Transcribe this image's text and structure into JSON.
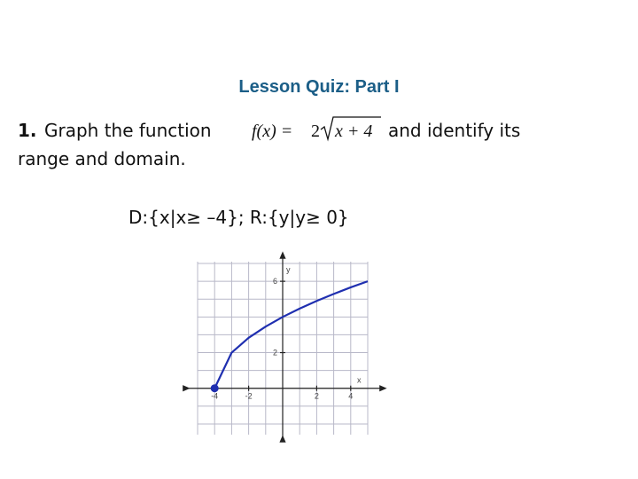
{
  "title": "Lesson Quiz: Part I",
  "question": {
    "number": "1.",
    "text_before": "Graph the function",
    "function_lhs": "f(x) =",
    "function_coefficient": "2",
    "function_radicand": "x + 4",
    "text_after": "and identify its",
    "text_line2": "range and domain."
  },
  "answer": "D:{x|x≥ –4}; R:{y|y≥ 0}",
  "graph": {
    "x_label": "x",
    "y_label": "y",
    "xlim": [
      -5,
      5
    ],
    "ylim": [
      -2.6,
      7.1
    ],
    "xticks": [
      -4,
      -2,
      2,
      4
    ],
    "yticks": [
      2,
      6
    ],
    "curve": {
      "color": "#1f2fb0",
      "x": [
        -4,
        -3,
        -2,
        -1,
        0,
        1,
        2,
        3,
        4,
        5
      ],
      "y": [
        0,
        2,
        2.83,
        3.46,
        4,
        4.47,
        4.9,
        5.29,
        5.66,
        6
      ]
    },
    "start_point": {
      "x": -4,
      "y": 0
    }
  }
}
